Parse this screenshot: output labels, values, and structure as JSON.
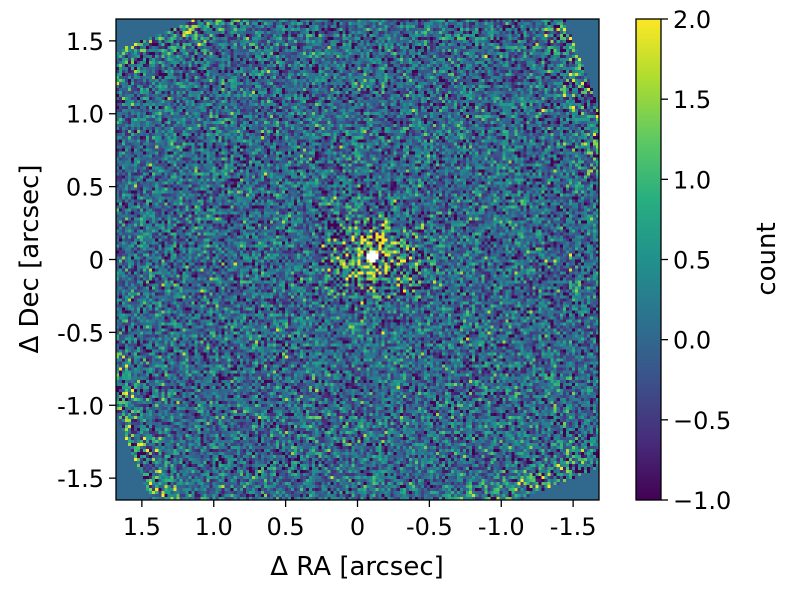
{
  "chart_data": {
    "type": "heatmap",
    "title": "",
    "xlabel": "Δ RA [arcsec]",
    "ylabel": "Δ Dec [arcsec]",
    "xlim": [
      1.68,
      -1.68
    ],
    "ylim": [
      -1.65,
      1.65
    ],
    "x_ticks": [
      1.5,
      1.0,
      0.5,
      0,
      -0.5,
      -1.0,
      -1.5
    ],
    "x_tick_labels": [
      "1.5",
      "1.0",
      "0.5",
      "0",
      "-0.5",
      "-1.0",
      "-1.5"
    ],
    "y_ticks": [
      1.5,
      1.0,
      0.5,
      0,
      -0.5,
      -1.0,
      -1.5
    ],
    "y_tick_labels": [
      "1.5",
      "1.0",
      "0.5",
      "0",
      "-0.5",
      "-1.0",
      "-1.5"
    ],
    "colorbar": {
      "label": "count",
      "range": [
        -1.0,
        2.0
      ],
      "ticks": [
        2.0,
        1.5,
        1.0,
        0.5,
        0.0,
        -0.5,
        -1.0
      ],
      "tick_labels": [
        "2.0",
        "1.5",
        "1.0",
        "0.5",
        "0.0",
        "−0.5",
        "−1.0"
      ],
      "colormap": "viridis"
    },
    "background_value": 0.0,
    "field_rotation_deg": 22,
    "field_half_width_arcsec": 1.95,
    "center_masked": true,
    "peak_region_center": [
      -0.1,
      0.02
    ],
    "grid": false
  },
  "colors": {
    "viridis_low": "#440154",
    "viridis_mid": "#21918c",
    "viridis_high": "#fde725",
    "background_pixel": "#2f6b8e"
  }
}
